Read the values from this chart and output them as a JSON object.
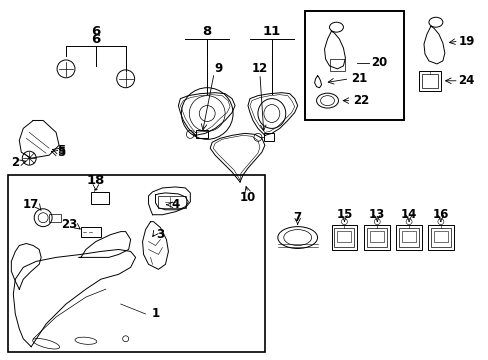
{
  "background_color": "#ffffff",
  "figure_width": 4.89,
  "figure_height": 3.6,
  "dpi": 100,
  "lc": "#000000",
  "tc": "#000000",
  "lw": 0.7,
  "lfs": 8.5
}
